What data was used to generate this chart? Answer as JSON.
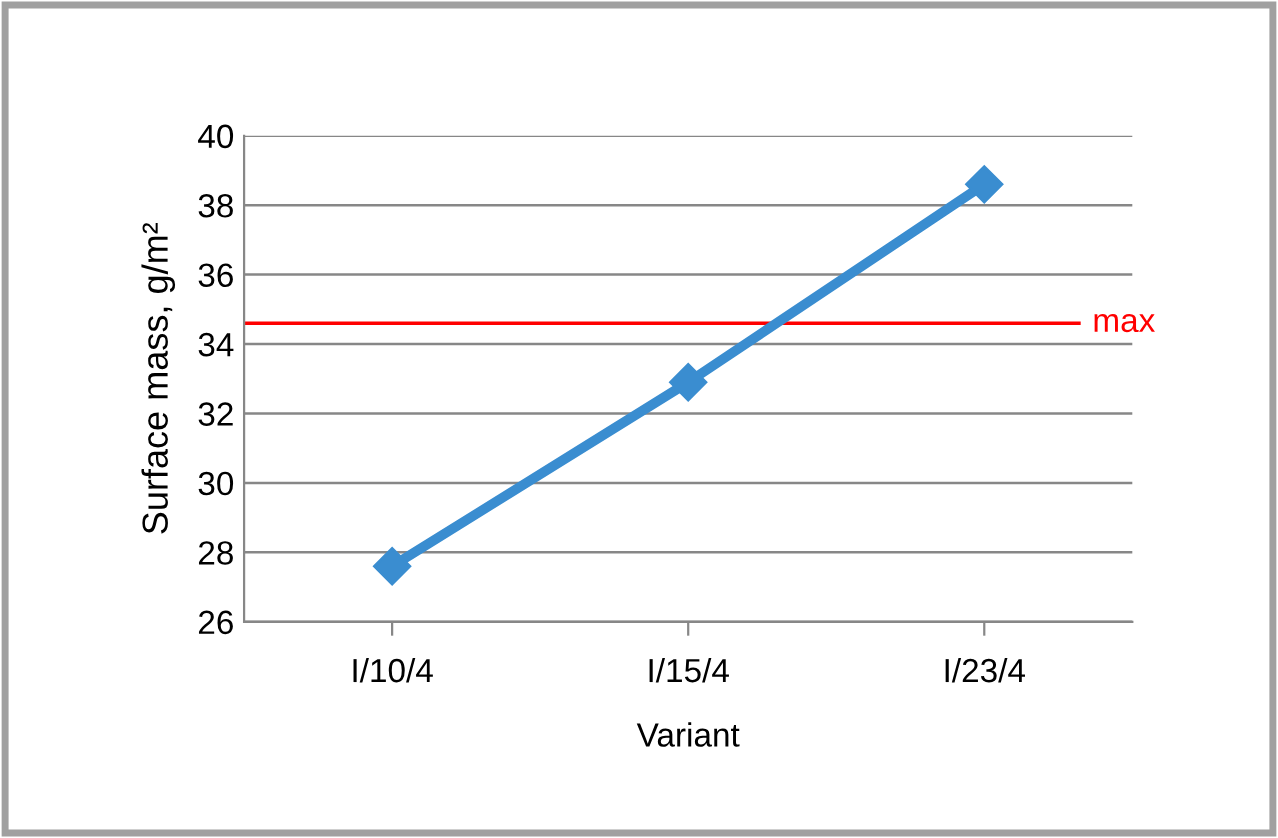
{
  "chart_data": {
    "type": "line",
    "xlabel": "Variant",
    "ylabel": "Surface mass, g/m²",
    "categories": [
      "I/10/4",
      "I/15/4",
      "I/23/4"
    ],
    "series": [
      {
        "color": "#3a8dd0",
        "values": [
          27.6,
          32.9,
          38.6
        ]
      }
    ],
    "ylim": [
      26,
      40
    ],
    "yticks": [
      26,
      28,
      30,
      32,
      34,
      36,
      38,
      40
    ],
    "grid": "y",
    "marker": "diamond",
    "line_style": "solid",
    "ref_lines": [
      {
        "axis": "y",
        "value": 34.6,
        "label": "max",
        "color": "#ff0000"
      }
    ]
  }
}
